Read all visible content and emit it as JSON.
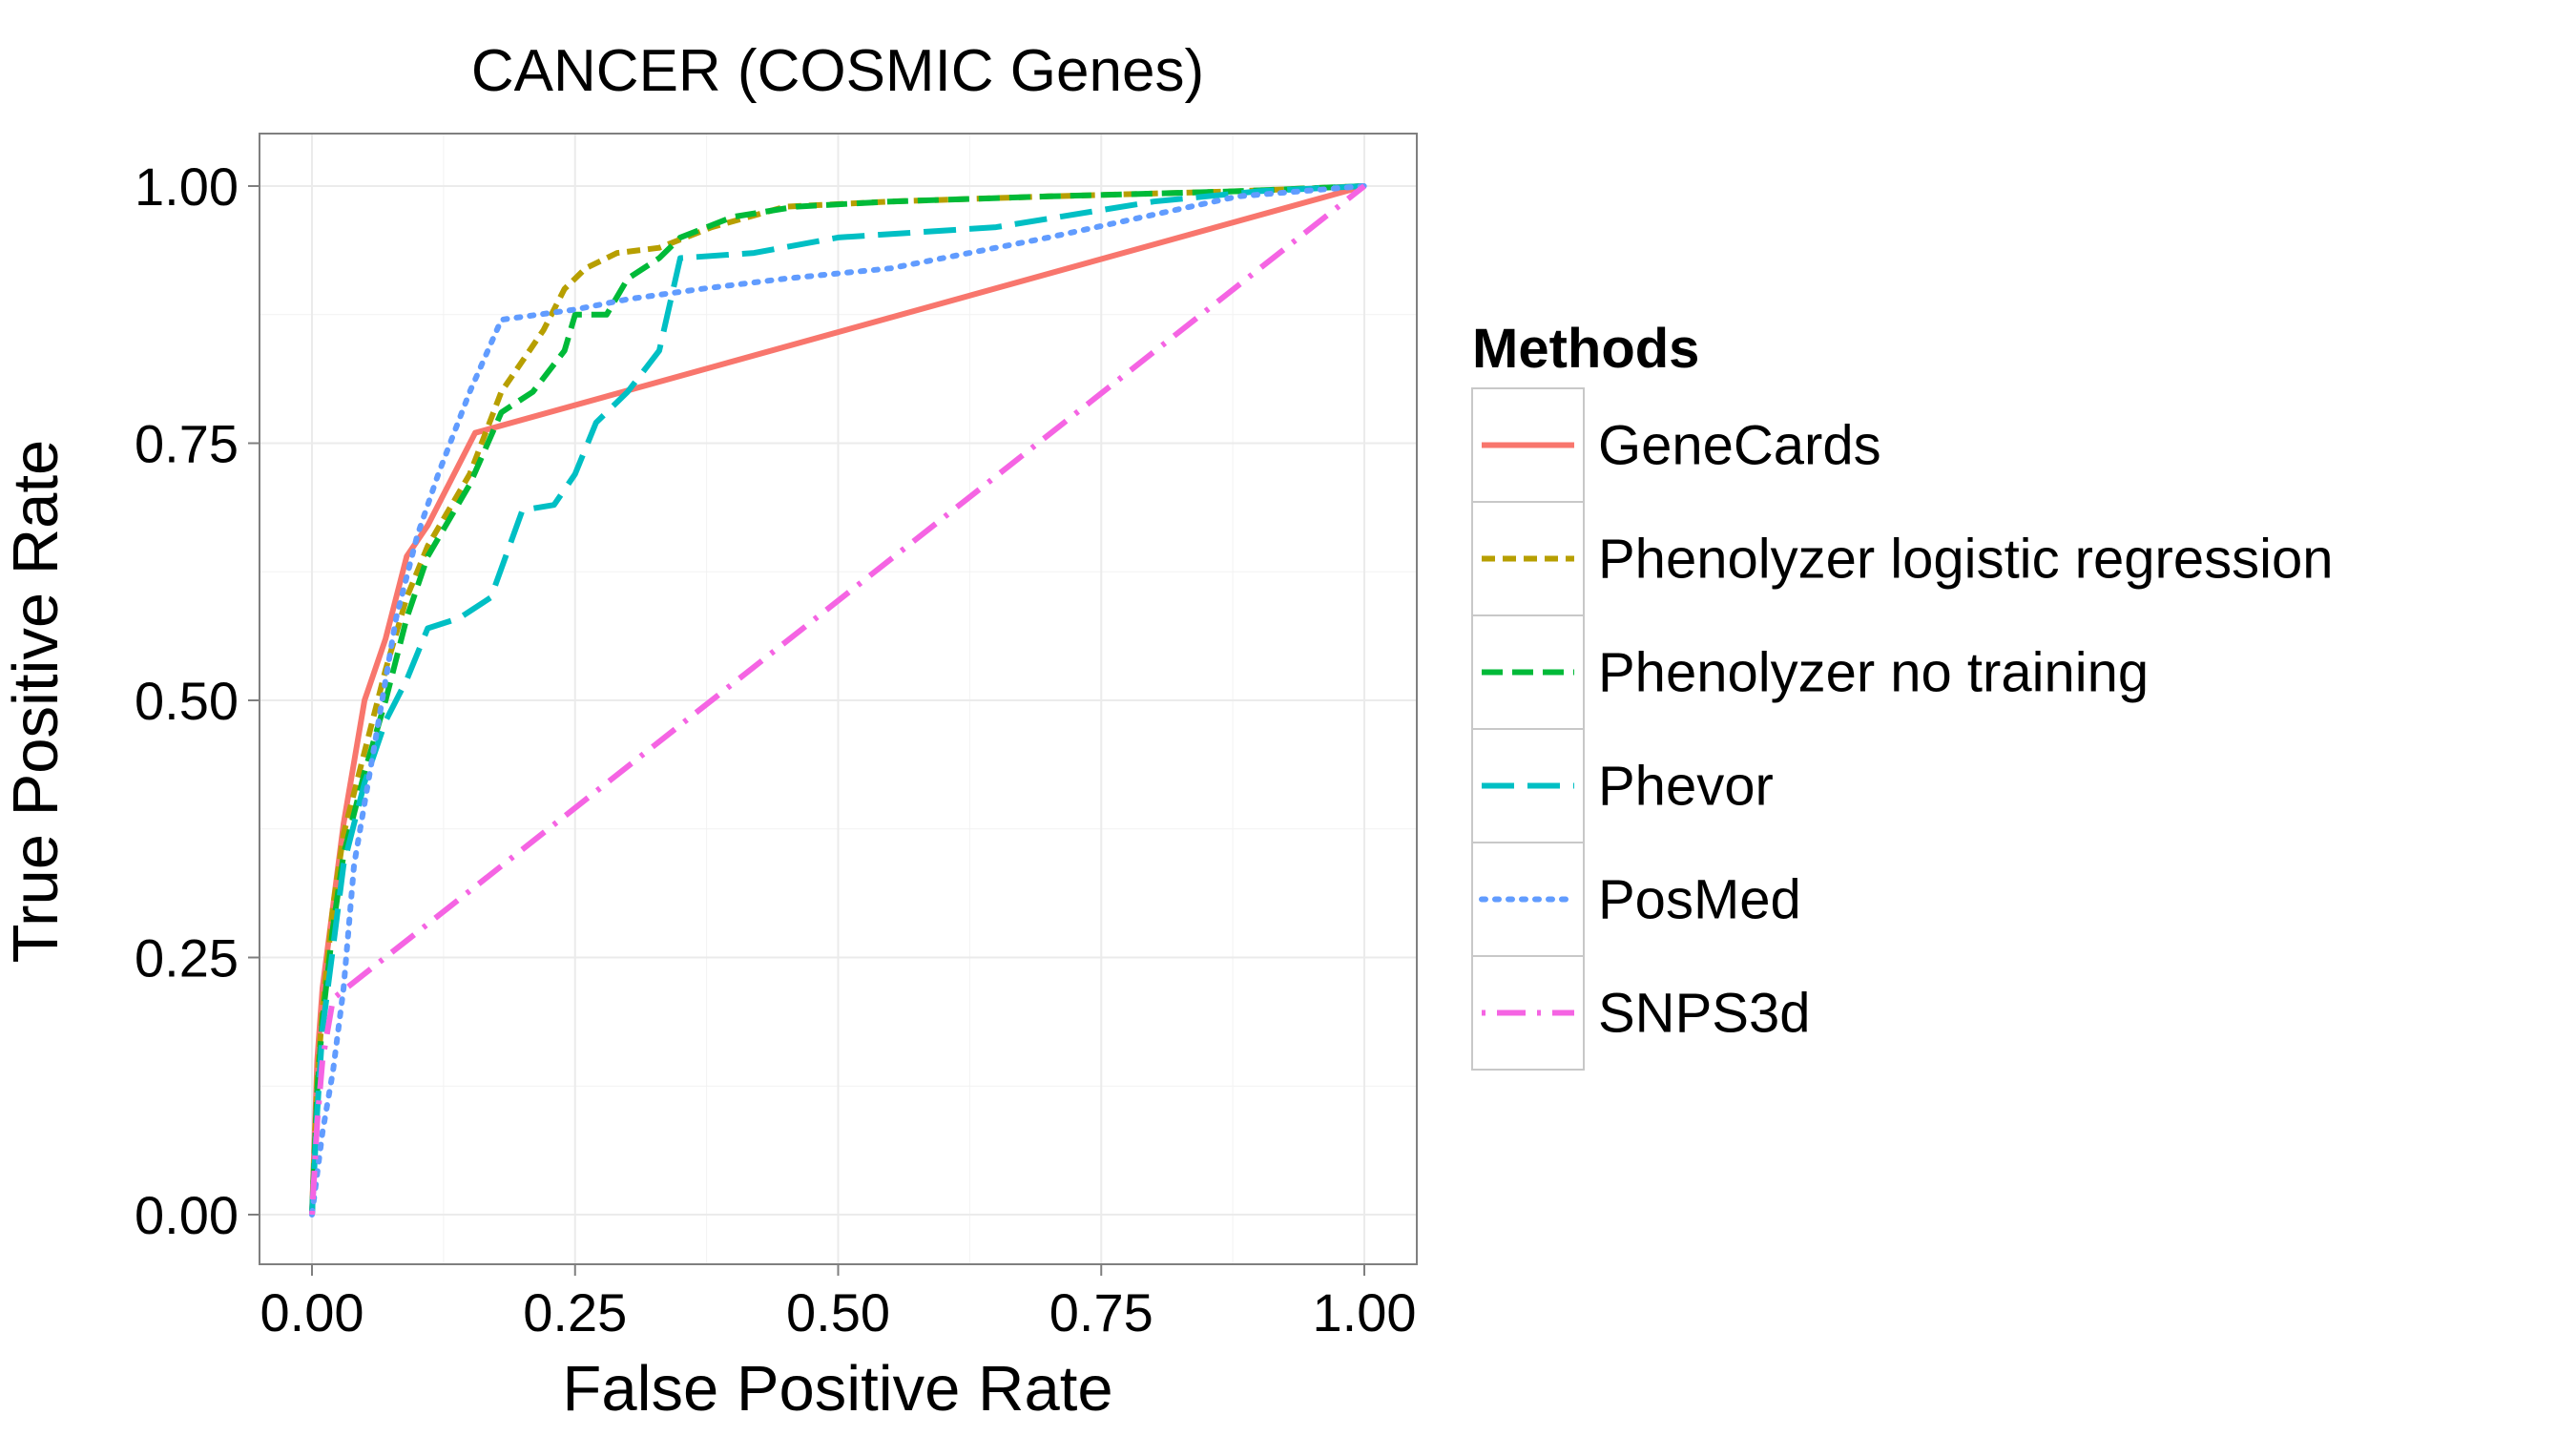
{
  "chart_data": {
    "type": "line",
    "title": "CANCER (COSMIC Genes)",
    "xlabel": "False Positive Rate",
    "ylabel": "True Positive Rate",
    "xlim": [
      0,
      1
    ],
    "ylim": [
      0,
      1
    ],
    "x_ticks": [
      "0.00",
      "0.25",
      "0.50",
      "0.75",
      "1.00"
    ],
    "y_ticks": [
      "0.00",
      "0.25",
      "0.50",
      "0.75",
      "1.00"
    ],
    "grid": true,
    "legend": {
      "title": "Methods",
      "position": "right"
    },
    "series": [
      {
        "name": "GeneCards",
        "color": "#F8766D",
        "dash": "solid",
        "points": [
          [
            0,
            0
          ],
          [
            0.005,
            0.15
          ],
          [
            0.01,
            0.22
          ],
          [
            0.02,
            0.3
          ],
          [
            0.03,
            0.38
          ],
          [
            0.04,
            0.44
          ],
          [
            0.05,
            0.5
          ],
          [
            0.07,
            0.56
          ],
          [
            0.09,
            0.64
          ],
          [
            0.11,
            0.67
          ],
          [
            0.13,
            0.71
          ],
          [
            0.155,
            0.76
          ],
          [
            1.0,
            1.0
          ]
        ]
      },
      {
        "name": "Phenolyzer logistic regression",
        "color": "#B79F00",
        "dash": "dashed-short",
        "points": [
          [
            0,
            0
          ],
          [
            0.005,
            0.13
          ],
          [
            0.01,
            0.2
          ],
          [
            0.02,
            0.3
          ],
          [
            0.03,
            0.37
          ],
          [
            0.05,
            0.45
          ],
          [
            0.07,
            0.53
          ],
          [
            0.09,
            0.6
          ],
          [
            0.11,
            0.65
          ],
          [
            0.15,
            0.72
          ],
          [
            0.18,
            0.8
          ],
          [
            0.2,
            0.83
          ],
          [
            0.22,
            0.86
          ],
          [
            0.24,
            0.9
          ],
          [
            0.26,
            0.92
          ],
          [
            0.29,
            0.935
          ],
          [
            0.33,
            0.94
          ],
          [
            0.38,
            0.96
          ],
          [
            0.45,
            0.98
          ],
          [
            0.55,
            0.985
          ],
          [
            0.7,
            0.99
          ],
          [
            0.88,
            0.995
          ],
          [
            1.0,
            1.0
          ]
        ]
      },
      {
        "name": "Phenolyzer no training",
        "color": "#00BA38",
        "dash": "dashed",
        "points": [
          [
            0,
            0
          ],
          [
            0.005,
            0.12
          ],
          [
            0.01,
            0.19
          ],
          [
            0.02,
            0.28
          ],
          [
            0.03,
            0.35
          ],
          [
            0.05,
            0.43
          ],
          [
            0.07,
            0.5
          ],
          [
            0.09,
            0.58
          ],
          [
            0.11,
            0.64
          ],
          [
            0.15,
            0.71
          ],
          [
            0.18,
            0.78
          ],
          [
            0.21,
            0.8
          ],
          [
            0.24,
            0.84
          ],
          [
            0.25,
            0.875
          ],
          [
            0.28,
            0.875
          ],
          [
            0.3,
            0.91
          ],
          [
            0.33,
            0.93
          ],
          [
            0.35,
            0.95
          ],
          [
            0.4,
            0.97
          ],
          [
            0.46,
            0.98
          ],
          [
            0.55,
            0.985
          ],
          [
            0.7,
            0.99
          ],
          [
            0.88,
            0.995
          ],
          [
            1.0,
            1.0
          ]
        ]
      },
      {
        "name": "Phevor",
        "color": "#00BFC4",
        "dash": "dashed-long",
        "points": [
          [
            0,
            0
          ],
          [
            0.005,
            0.1
          ],
          [
            0.01,
            0.18
          ],
          [
            0.02,
            0.26
          ],
          [
            0.03,
            0.34
          ],
          [
            0.05,
            0.42
          ],
          [
            0.07,
            0.48
          ],
          [
            0.09,
            0.52
          ],
          [
            0.11,
            0.57
          ],
          [
            0.14,
            0.58
          ],
          [
            0.17,
            0.6
          ],
          [
            0.2,
            0.685
          ],
          [
            0.23,
            0.69
          ],
          [
            0.25,
            0.72
          ],
          [
            0.27,
            0.77
          ],
          [
            0.3,
            0.8
          ],
          [
            0.33,
            0.84
          ],
          [
            0.35,
            0.93
          ],
          [
            0.42,
            0.935
          ],
          [
            0.5,
            0.95
          ],
          [
            0.65,
            0.96
          ],
          [
            0.8,
            0.985
          ],
          [
            0.9,
            0.995
          ],
          [
            1.0,
            1.0
          ]
        ]
      },
      {
        "name": "PosMed",
        "color": "#619CFF",
        "dash": "dotted",
        "points": [
          [
            0,
            0
          ],
          [
            0.005,
            0.04
          ],
          [
            0.01,
            0.08
          ],
          [
            0.02,
            0.14
          ],
          [
            0.03,
            0.22
          ],
          [
            0.04,
            0.34
          ],
          [
            0.06,
            0.46
          ],
          [
            0.08,
            0.58
          ],
          [
            0.1,
            0.66
          ],
          [
            0.12,
            0.72
          ],
          [
            0.15,
            0.8
          ],
          [
            0.18,
            0.87
          ],
          [
            0.25,
            0.88
          ],
          [
            0.3,
            0.89
          ],
          [
            0.37,
            0.9
          ],
          [
            0.45,
            0.91
          ],
          [
            0.55,
            0.92
          ],
          [
            0.7,
            0.95
          ],
          [
            0.88,
            0.99
          ],
          [
            1.0,
            1.0
          ]
        ]
      },
      {
        "name": "SNPS3d",
        "color": "#F564E3",
        "dash": "dashdot",
        "points": [
          [
            0,
            0
          ],
          [
            0.005,
            0.09
          ],
          [
            0.01,
            0.15
          ],
          [
            0.02,
            0.21
          ],
          [
            1.0,
            1.0
          ]
        ]
      }
    ]
  }
}
